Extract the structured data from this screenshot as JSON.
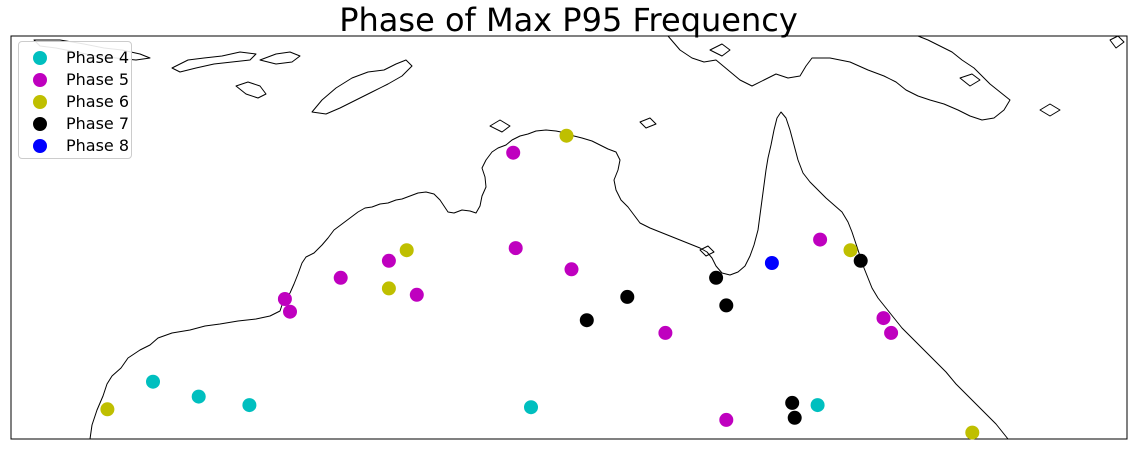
{
  "title": "Phase of Max P95 Frequency",
  "legend": {
    "position": "upper-left",
    "items": [
      {
        "label": "Phase 4",
        "color": "#00bfbf"
      },
      {
        "label": "Phase 5",
        "color": "#bf00bf"
      },
      {
        "label": "Phase 6",
        "color": "#bfbf00"
      },
      {
        "label": "Phase 7",
        "color": "#000000"
      },
      {
        "label": "Phase 8",
        "color": "#0000ff"
      }
    ]
  },
  "chart_data": {
    "type": "scatter",
    "projection": "map of northern Australia",
    "lon_range": [
      112,
      156
    ],
    "lat_range": [
      -28,
      -9
    ],
    "series": [
      {
        "name": "Phase 4",
        "color": "#00bfbf",
        "points": [
          [
            117.6,
            -25.3
          ],
          [
            119.4,
            -26.0
          ],
          [
            121.4,
            -26.4
          ],
          [
            132.5,
            -26.5
          ],
          [
            143.8,
            -26.4
          ]
        ]
      },
      {
        "name": "Phase 5",
        "color": "#bf00bf",
        "points": [
          [
            131.8,
            -14.5
          ],
          [
            122.8,
            -21.4
          ],
          [
            123.0,
            -22.0
          ],
          [
            125.0,
            -20.4
          ],
          [
            126.9,
            -19.6
          ],
          [
            128.0,
            -21.2
          ],
          [
            131.9,
            -19.0
          ],
          [
            134.1,
            -20.0
          ],
          [
            137.8,
            -23.0
          ],
          [
            143.9,
            -18.6
          ],
          [
            146.4,
            -22.3
          ],
          [
            146.7,
            -23.0
          ],
          [
            140.2,
            -27.1
          ]
        ]
      },
      {
        "name": "Phase 6",
        "color": "#bfbf00",
        "points": [
          [
            133.9,
            -13.7
          ],
          [
            115.8,
            -26.6
          ],
          [
            127.6,
            -19.1
          ],
          [
            126.9,
            -20.9
          ],
          [
            145.1,
            -19.1
          ],
          [
            149.9,
            -27.7
          ]
        ]
      },
      {
        "name": "Phase 7",
        "color": "#000000",
        "points": [
          [
            145.5,
            -19.6
          ],
          [
            139.8,
            -20.4
          ],
          [
            136.3,
            -21.3
          ],
          [
            140.2,
            -21.7
          ],
          [
            134.7,
            -22.4
          ],
          [
            142.8,
            -26.3
          ],
          [
            142.9,
            -27.0
          ]
        ]
      },
      {
        "name": "Phase 8",
        "color": "#0000ff",
        "points": [
          [
            142.0,
            -19.7
          ]
        ]
      }
    ]
  }
}
